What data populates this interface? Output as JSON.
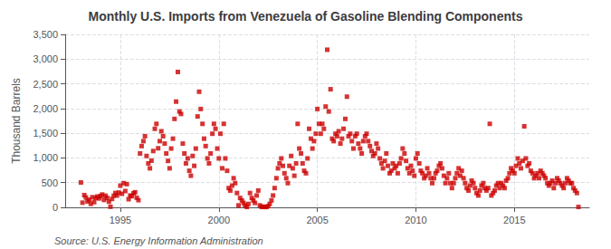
{
  "chart_data": {
    "type": "scatter",
    "title": "Monthly U.S. Imports from Venezuela of Gasoline Blending Components",
    "ylabel": "Thousand Barrels",
    "annotations": [
      "Source: U.S. Energy Information Administration"
    ],
    "color": "#cc0000",
    "marker": "square",
    "grid": true,
    "xlim": [
      1992.2,
      2018.8
    ],
    "xticks": [
      1995,
      2000,
      2005,
      2010,
      2015
    ],
    "ylim": [
      0,
      3500
    ],
    "yticks": [
      0,
      500,
      {
        "value": 1000,
        "label": "1,000"
      },
      {
        "value": 1500,
        "label": "1,500"
      },
      {
        "value": 2000,
        "label": "2,000"
      },
      {
        "value": 2500,
        "label": "2,500"
      },
      {
        "value": 3000,
        "label": "3,000"
      },
      {
        "value": 3500,
        "label": "3,500"
      }
    ],
    "x": [
      1993.0,
      1993.08,
      1993.17,
      1993.25,
      1993.33,
      1993.42,
      1993.5,
      1993.58,
      1993.67,
      1993.75,
      1993.83,
      1993.92,
      1994.0,
      1994.08,
      1994.17,
      1994.25,
      1994.33,
      1994.42,
      1994.5,
      1994.58,
      1994.67,
      1994.75,
      1994.83,
      1994.92,
      1995.0,
      1995.08,
      1995.17,
      1995.25,
      1995.33,
      1995.42,
      1995.5,
      1995.58,
      1995.67,
      1995.75,
      1995.83,
      1995.92,
      1996.0,
      1996.08,
      1996.17,
      1996.25,
      1996.33,
      1996.42,
      1996.5,
      1996.58,
      1996.67,
      1996.75,
      1996.83,
      1996.92,
      1997.0,
      1997.08,
      1997.17,
      1997.25,
      1997.33,
      1997.42,
      1997.5,
      1997.58,
      1997.67,
      1997.75,
      1997.83,
      1997.92,
      1998.0,
      1998.08,
      1998.17,
      1998.25,
      1998.33,
      1998.42,
      1998.5,
      1998.58,
      1998.67,
      1998.75,
      1998.83,
      1998.92,
      1999.0,
      1999.08,
      1999.17,
      1999.25,
      1999.33,
      1999.42,
      1999.5,
      1999.58,
      1999.67,
      1999.75,
      1999.83,
      1999.92,
      2000.0,
      2000.08,
      2000.17,
      2000.25,
      2000.33,
      2000.42,
      2000.5,
      2000.58,
      2000.67,
      2000.75,
      2000.83,
      2000.92,
      2001.0,
      2001.08,
      2001.17,
      2001.25,
      2001.33,
      2001.42,
      2001.5,
      2001.58,
      2001.67,
      2001.75,
      2001.83,
      2001.92,
      2002.0,
      2002.08,
      2002.17,
      2002.25,
      2002.33,
      2002.42,
      2002.5,
      2002.58,
      2002.67,
      2002.75,
      2002.83,
      2002.92,
      2003.0,
      2003.08,
      2003.17,
      2003.25,
      2003.33,
      2003.42,
      2003.5,
      2003.58,
      2003.67,
      2003.75,
      2003.83,
      2003.92,
      2004.0,
      2004.08,
      2004.17,
      2004.25,
      2004.33,
      2004.42,
      2004.5,
      2004.58,
      2004.67,
      2004.75,
      2004.83,
      2004.92,
      2005.0,
      2005.08,
      2005.17,
      2005.25,
      2005.33,
      2005.42,
      2005.5,
      2005.58,
      2005.67,
      2005.75,
      2005.83,
      2005.92,
      2006.0,
      2006.08,
      2006.17,
      2006.25,
      2006.33,
      2006.42,
      2006.5,
      2006.58,
      2006.67,
      2006.75,
      2006.83,
      2006.92,
      2007.0,
      2007.08,
      2007.17,
      2007.25,
      2007.33,
      2007.42,
      2007.5,
      2007.58,
      2007.67,
      2007.75,
      2007.83,
      2007.92,
      2008.0,
      2008.08,
      2008.17,
      2008.25,
      2008.33,
      2008.42,
      2008.5,
      2008.58,
      2008.67,
      2008.75,
      2008.83,
      2008.92,
      2009.0,
      2009.08,
      2009.17,
      2009.25,
      2009.33,
      2009.42,
      2009.5,
      2009.58,
      2009.67,
      2009.75,
      2009.83,
      2009.92,
      2010.0,
      2010.08,
      2010.17,
      2010.25,
      2010.33,
      2010.42,
      2010.5,
      2010.58,
      2010.67,
      2010.75,
      2010.83,
      2010.92,
      2011.0,
      2011.08,
      2011.17,
      2011.25,
      2011.33,
      2011.42,
      2011.5,
      2011.58,
      2011.67,
      2011.75,
      2011.83,
      2011.92,
      2012.0,
      2012.08,
      2012.17,
      2012.25,
      2012.33,
      2012.42,
      2012.5,
      2012.58,
      2012.67,
      2012.75,
      2012.83,
      2012.92,
      2013.0,
      2013.08,
      2013.17,
      2013.25,
      2013.33,
      2013.42,
      2013.5,
      2013.58,
      2013.67,
      2013.75,
      2013.83,
      2013.92,
      2014.0,
      2014.08,
      2014.17,
      2014.25,
      2014.33,
      2014.42,
      2014.5,
      2014.58,
      2014.67,
      2014.75,
      2014.83,
      2014.92,
      2015.0,
      2015.08,
      2015.17,
      2015.25,
      2015.33,
      2015.42,
      2015.5,
      2015.58,
      2015.67,
      2015.75,
      2015.83,
      2015.92,
      2016.0,
      2016.08,
      2016.17,
      2016.25,
      2016.33,
      2016.42,
      2016.5,
      2016.58,
      2016.67,
      2016.75,
      2016.83,
      2016.92,
      2017.0,
      2017.08,
      2017.17,
      2017.25,
      2017.33,
      2017.42,
      2017.5,
      2017.58,
      2017.67,
      2017.75,
      2017.83,
      2017.92,
      2018.0,
      2018.08,
      2018.17,
      2018.25
    ],
    "values": [
      503,
      95,
      248,
      200,
      120,
      155,
      70,
      205,
      105,
      190,
      220,
      180,
      230,
      260,
      150,
      235,
      190,
      115,
      12,
      170,
      235,
      290,
      240,
      300,
      440,
      275,
      490,
      330,
      470,
      165,
      240,
      225,
      285,
      305,
      195,
      145,
      1090,
      1240,
      1340,
      1440,
      1040,
      890,
      790,
      945,
      1140,
      1590,
      1690,
      1195,
      1340,
      1540,
      1440,
      1290,
      1090,
      940,
      790,
      1190,
      1390,
      1790,
      2140,
      2740,
      1940,
      1890,
      1290,
      1090,
      890,
      990,
      740,
      640,
      1040,
      840,
      1190,
      1840,
      2340,
      1990,
      1690,
      1390,
      1240,
      990,
      890,
      1090,
      1490,
      1690,
      1590,
      1190,
      990,
      1490,
      790,
      1690,
      990,
      740,
      390,
      340,
      440,
      590,
      490,
      290,
      40,
      190,
      140,
      90,
      40,
      8,
      70,
      290,
      190,
      140,
      90,
      240,
      340,
      40,
      8,
      15,
      8,
      8,
      25,
      70,
      140,
      240,
      390,
      590,
      790,
      890,
      990,
      840,
      690,
      590,
      490,
      840,
      1040,
      790,
      640,
      890,
      1690,
      1190,
      1090,
      890,
      740,
      690,
      990,
      1590,
      1390,
      1190,
      1340,
      1490,
      1990,
      1690,
      1490,
      1690,
      1590,
      2040,
      3190,
      1940,
      2390,
      1390,
      1340,
      1490,
      1440,
      1540,
      1290,
      1390,
      1590,
      1790,
      2240,
      1440,
      1490,
      1340,
      1190,
      1440,
      1490,
      1290,
      1190,
      1090,
      1340,
      1440,
      1490,
      1340,
      1240,
      1140,
      1040,
      1090,
      1290,
      1190,
      990,
      890,
      790,
      940,
      1090,
      840,
      690,
      740,
      890,
      790,
      840,
      690,
      890,
      990,
      1190,
      1090,
      940,
      790,
      690,
      840,
      740,
      640,
      990,
      1090,
      890,
      740,
      690,
      590,
      640,
      790,
      690,
      590,
      490,
      590,
      690,
      740,
      840,
      890,
      790,
      640,
      490,
      590,
      690,
      490,
      390,
      490,
      590,
      690,
      790,
      640,
      740,
      590,
      490,
      390,
      340,
      440,
      540,
      490,
      390,
      290,
      240,
      340,
      440,
      490,
      390,
      340,
      390,
      1690,
      240,
      290,
      340,
      440,
      490,
      390,
      490,
      440,
      390,
      540,
      590,
      690,
      790,
      740,
      690,
      840,
      990,
      890,
      790,
      940,
      1640,
      990,
      840,
      890,
      740,
      690,
      590,
      640,
      690,
      590,
      740,
      690,
      640,
      590,
      490,
      440,
      490,
      540,
      390,
      490,
      590,
      540,
      490,
      440,
      390,
      490,
      590,
      540,
      490,
      490,
      390,
      340,
      290,
      8
    ]
  }
}
